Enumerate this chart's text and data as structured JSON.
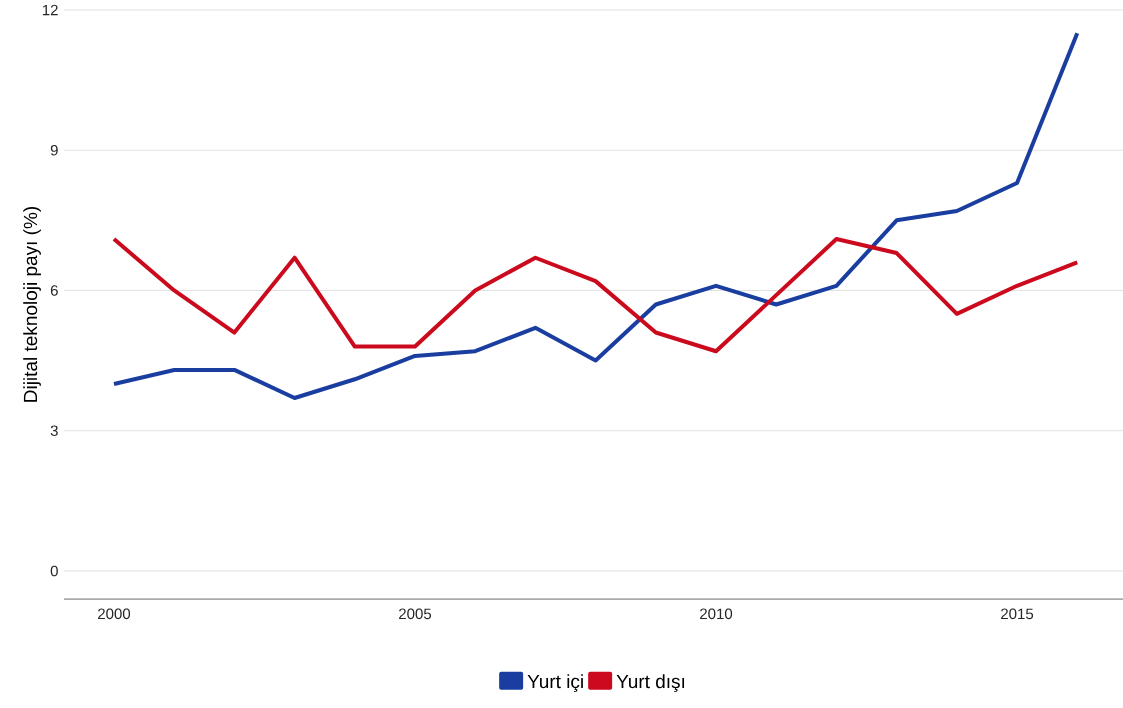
{
  "chart_data": {
    "type": "line",
    "ylabel": "Dijital teknoloji payı (%)",
    "x": [
      2000,
      2001,
      2002,
      2003,
      2004,
      2005,
      2006,
      2007,
      2008,
      2009,
      2010,
      2011,
      2012,
      2013,
      2014,
      2015,
      2016
    ],
    "series": [
      {
        "name": "Yurt içi",
        "color": "#1a3ea0",
        "values": [
          4.0,
          4.3,
          4.3,
          3.7,
          4.1,
          4.6,
          4.7,
          5.2,
          4.5,
          5.7,
          6.1,
          5.7,
          6.1,
          7.5,
          7.7,
          8.3,
          11.5
        ]
      },
      {
        "name": "Yurt dışı",
        "color": "#cc0a1e",
        "values": [
          7.1,
          6.0,
          5.1,
          6.7,
          4.8,
          4.8,
          6.0,
          6.7,
          6.2,
          5.1,
          4.7,
          5.9,
          7.1,
          6.8,
          5.5,
          6.1,
          6.6
        ]
      }
    ],
    "xlim": [
      1999.17,
      2016.76
    ],
    "ylim": [
      -0.6,
      12
    ],
    "xticks": [
      2000,
      2005,
      2010,
      2015
    ],
    "yticks": [
      0,
      3,
      6,
      9,
      12
    ],
    "grid": "y",
    "legend": "bottom",
    "line_style": "solid",
    "marker": "none"
  }
}
